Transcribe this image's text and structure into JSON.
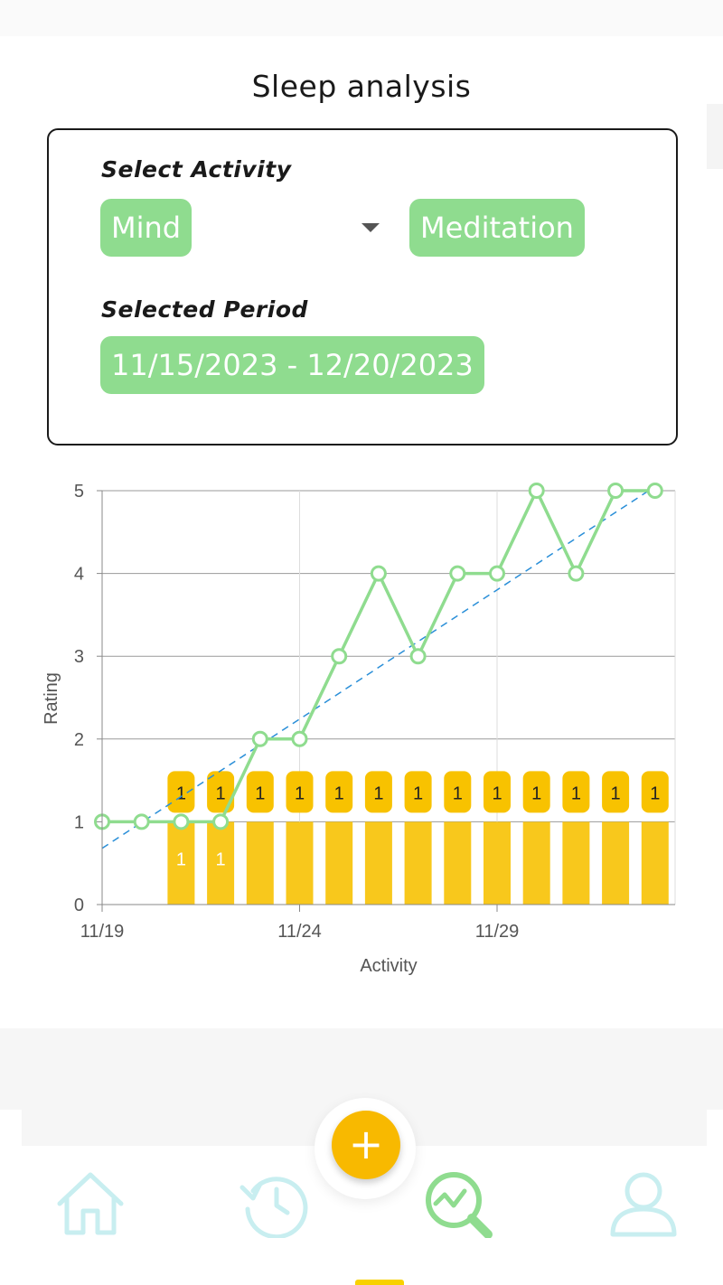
{
  "header": {
    "title": "Sleep analysis"
  },
  "filters": {
    "activity_label": "Select Activity",
    "category_value": "Mind",
    "activity_value": "Meditation",
    "period_label": "Selected Period",
    "period_value": "11/15/2023 - 12/20/2023"
  },
  "chart_data": {
    "type": "line",
    "xlabel": "Activity",
    "ylabel": "Rating",
    "ylim": [
      0,
      5
    ],
    "yticks": [
      "0",
      "1",
      "2",
      "3",
      "4",
      "5"
    ],
    "xticks": [
      "11/19",
      "11/24",
      "11/29"
    ],
    "grid": true,
    "series": [
      {
        "kind": "line",
        "color": "#8fdc8f",
        "x": [
          "11/19",
          "11/20",
          "11/21",
          "11/22",
          "11/23",
          "11/24",
          "11/25",
          "11/26",
          "11/27",
          "11/28",
          "11/29",
          "11/30",
          "12/1",
          "12/2",
          "12/3"
        ],
        "values": [
          1,
          1,
          1,
          1,
          2,
          2,
          3,
          4,
          3,
          4,
          4,
          5,
          4,
          5,
          5
        ]
      },
      {
        "kind": "bar",
        "color": "#f8c81c",
        "x": [
          "11/21",
          "11/22",
          "11/23",
          "11/24",
          "11/25",
          "11/26",
          "11/27",
          "11/28",
          "11/29",
          "11/30",
          "12/1",
          "12/2",
          "12/3"
        ],
        "values": [
          1,
          1,
          1,
          1,
          1,
          1,
          1,
          1,
          1,
          1,
          1,
          1,
          1
        ],
        "labels": [
          "1",
          "1",
          "1",
          "1",
          "1",
          "1",
          "1",
          "1",
          "1",
          "1",
          "1",
          "1",
          "1"
        ]
      },
      {
        "kind": "trendline",
        "color": "#2a8fd8",
        "style": "dashed",
        "start": {
          "x": "11/19",
          "y": 0.68
        },
        "end": {
          "x": "12/3",
          "y": 5.05
        }
      }
    ]
  },
  "nav": {
    "items": [
      {
        "icon": "home-icon",
        "color": "#c8eef0"
      },
      {
        "icon": "history-icon",
        "color": "#c8eef0"
      },
      {
        "icon": "analytics-icon",
        "color": "#8fdc8f"
      },
      {
        "icon": "profile-icon",
        "color": "#c8eef0"
      }
    ],
    "fab_label": "+"
  }
}
